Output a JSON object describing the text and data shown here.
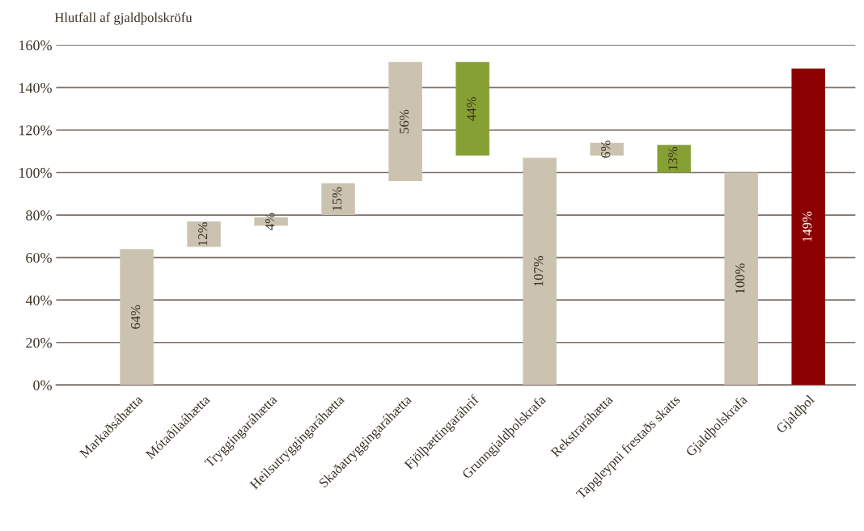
{
  "chart_data": {
    "type": "bar",
    "ylabel": "Hlutfall af gjaldþolskröfu",
    "categories": [
      "Markaðsáhætta",
      "Mótaðilaáhætta",
      "Tryggingaráhætta",
      "Heilsutryggingaráhætta",
      "Skaðatryggingaráhætta",
      "Fjölþættingaráhrif",
      "Grunngjaldþolskrafa",
      "Rekstraráhætta",
      "Tapgleypni frestaðs skatts",
      "Gjaldþolskrafa",
      "Gjaldþol"
    ],
    "values": [
      64,
      12,
      4,
      15,
      56,
      44,
      107,
      6,
      13,
      100,
      149
    ],
    "base": [
      0,
      65,
      75,
      80,
      96,
      108,
      0,
      108,
      100,
      0,
      0
    ],
    "colors": [
      "#cbc3af",
      "#cbc3af",
      "#cbc3af",
      "#cbc3af",
      "#cbc3af",
      "#86a033",
      "#cbc3af",
      "#cbc3af",
      "#86a033",
      "#cbc3af",
      "#8b0000"
    ],
    "value_labels": [
      "64%",
      "12%",
      "4%",
      "15%",
      "56%",
      "44%",
      "107%",
      "6%",
      "13%",
      "100%",
      "149%"
    ],
    "ylim": [
      0,
      160
    ],
    "yticks": [
      {
        "value": 0,
        "label": "0%"
      },
      {
        "value": 20,
        "label": "20%"
      },
      {
        "value": 40,
        "label": "40%"
      },
      {
        "value": 60,
        "label": "60%"
      },
      {
        "value": 80,
        "label": "80%"
      },
      {
        "value": 100,
        "label": "100%"
      },
      {
        "value": 120,
        "label": "120%"
      },
      {
        "value": 140,
        "label": "140%"
      },
      {
        "value": 160,
        "label": "160%"
      }
    ],
    "grid": "y"
  }
}
